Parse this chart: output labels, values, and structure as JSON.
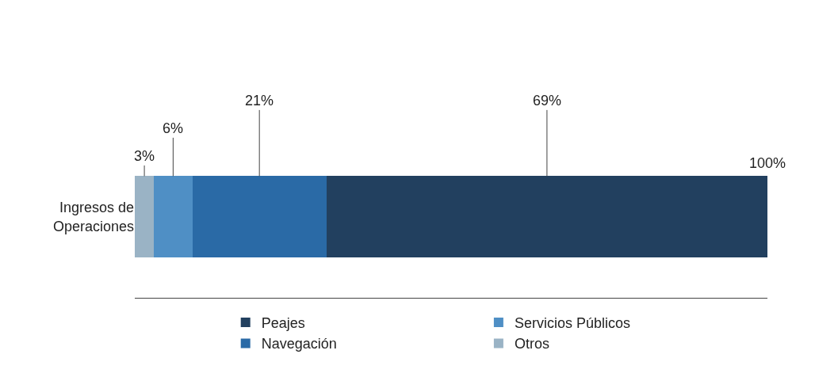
{
  "chart_data": {
    "type": "bar",
    "orientation": "horizontal",
    "stacked": true,
    "categories": [
      "Ingresos de Operaciones"
    ],
    "series": [
      {
        "name": "Otros",
        "color": "#9ab3c5",
        "values": [
          3
        ],
        "value_labels": [
          "3%"
        ]
      },
      {
        "name": "Servicios Públicos",
        "color": "#4f8fc5",
        "values": [
          6
        ],
        "value_labels": [
          "6%"
        ]
      },
      {
        "name": "Navegación",
        "color": "#2a6aa6",
        "values": [
          21
        ],
        "value_labels": [
          "21%"
        ]
      },
      {
        "name": "Peajes",
        "color": "#22405f",
        "values": [
          69
        ],
        "value_labels": [
          "69%"
        ]
      }
    ],
    "totals": [
      "100%"
    ],
    "tick_labels": "y",
    "legend": "bottom"
  }
}
